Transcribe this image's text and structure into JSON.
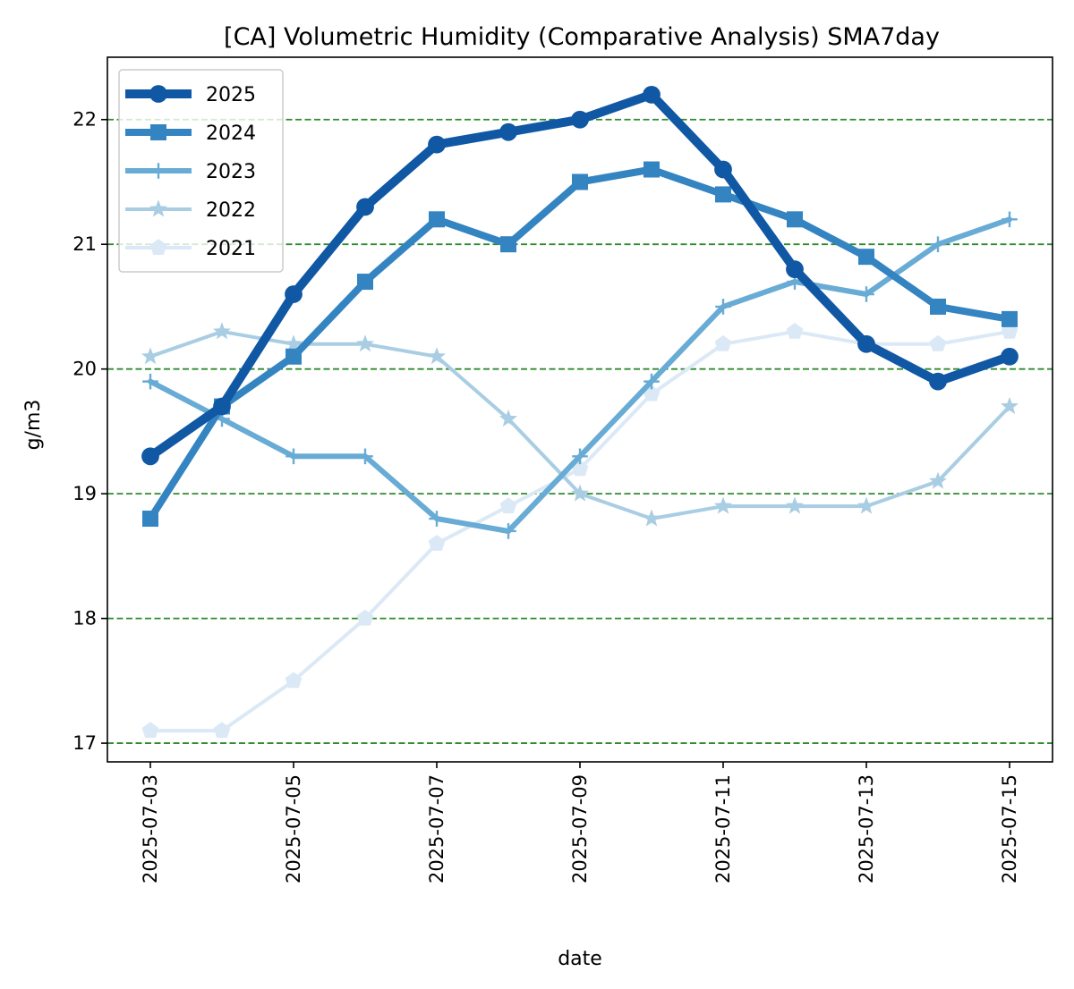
{
  "chart_data": {
    "type": "line",
    "title": "[CA] Volumetric Humidity (Comparative Analysis) SMA7day",
    "xlabel": "date",
    "ylabel": "g/m3",
    "x": [
      "2025-07-03",
      "2025-07-04",
      "2025-07-05",
      "2025-07-06",
      "2025-07-07",
      "2025-07-08",
      "2025-07-09",
      "2025-07-10",
      "2025-07-11",
      "2025-07-12",
      "2025-07-13",
      "2025-07-14",
      "2025-07-15"
    ],
    "xticks": [
      "2025-07-03",
      "2025-07-05",
      "2025-07-07",
      "2025-07-09",
      "2025-07-11",
      "2025-07-13",
      "2025-07-15"
    ],
    "yticks": [
      17,
      18,
      19,
      20,
      21,
      22
    ],
    "ylim": [
      16.85,
      22.5
    ],
    "grid": "horizontal dashed",
    "grid_color": "#2e8b2e",
    "legend_position": "upper-left",
    "series": [
      {
        "name": "2021",
        "marker": "pentagon",
        "color": "#dbe9f6",
        "width": 4,
        "values": [
          17.1,
          17.1,
          17.5,
          18.0,
          18.6,
          18.9,
          19.2,
          19.8,
          20.2,
          20.3,
          20.2,
          20.2,
          20.3
        ]
      },
      {
        "name": "2022",
        "marker": "star",
        "color": "#a9cde3",
        "width": 4,
        "values": [
          20.1,
          20.3,
          20.2,
          20.2,
          20.1,
          19.6,
          19.0,
          18.8,
          18.9,
          18.9,
          18.9,
          19.1,
          19.7
        ]
      },
      {
        "name": "2023",
        "marker": "plus",
        "color": "#68abd5",
        "width": 6,
        "values": [
          19.9,
          19.6,
          19.3,
          19.3,
          18.8,
          18.7,
          19.3,
          19.9,
          20.5,
          20.7,
          20.6,
          21.0,
          21.2
        ]
      },
      {
        "name": "2024",
        "marker": "square",
        "color": "#3484c2",
        "width": 8,
        "values": [
          18.8,
          19.7,
          20.1,
          20.7,
          21.2,
          21.0,
          21.5,
          21.6,
          21.4,
          21.2,
          20.9,
          20.5,
          20.4
        ]
      },
      {
        "name": "2025",
        "marker": "circle",
        "color": "#1058a4",
        "width": 10,
        "values": [
          19.3,
          19.7,
          20.6,
          21.3,
          21.8,
          21.9,
          22.0,
          22.2,
          21.6,
          20.8,
          20.2,
          19.9,
          20.1
        ]
      }
    ],
    "legend_order": [
      "2025",
      "2024",
      "2023",
      "2022",
      "2021"
    ]
  }
}
